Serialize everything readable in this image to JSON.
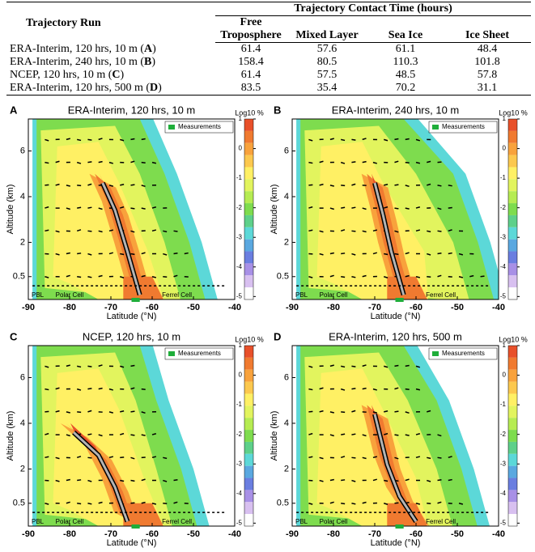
{
  "table": {
    "run_header": "Trajectory Run",
    "group_header": "Trajectory Contact Time (hours)",
    "columns": [
      "Free Troposphere",
      "Mixed Layer",
      "Sea Ice",
      "Ice Sheet"
    ],
    "rows": [
      {
        "prefix": "ERA-Interim, 120 hrs, 10 m (",
        "key": "A",
        "suffix": ")",
        "values": [
          61.4,
          57.6,
          61.1,
          48.4
        ]
      },
      {
        "prefix": "ERA-Interim, 240 hrs, 10 m (",
        "key": "B",
        "suffix": ")",
        "values": [
          158.4,
          80.5,
          110.3,
          101.8
        ]
      },
      {
        "prefix": "NCEP, 120 hrs, 10 m (",
        "key": "C",
        "suffix": ")",
        "values": [
          61.4,
          57.5,
          48.5,
          57.8
        ]
      },
      {
        "prefix": "ERA-Interim, 120 hrs, 500 m (",
        "key": "D",
        "suffix": ")",
        "values": [
          83.5,
          35.4,
          70.2,
          31.1
        ]
      }
    ]
  },
  "chart_data": [
    {
      "type": "contour",
      "letter": "A",
      "title": "ERA-Interim, 120 hrs, 10 m",
      "x_label": "Latitude (°N)",
      "y_label": "Altitude (km)",
      "xlim": [
        -90,
        -40
      ],
      "xticks": [
        -90,
        -80,
        -70,
        -60,
        -50,
        -40
      ],
      "ylim": [
        -0.5,
        7.4
      ],
      "yticks": [
        0.5,
        2,
        4,
        6
      ],
      "annotations": [
        "PBL",
        "Polar Cell",
        "Ferrel Cell"
      ],
      "legend": "Measurements",
      "legend_color": "#1fae3a",
      "colorbar_label": "Log10 %",
      "clim": [
        -5.1,
        1
      ],
      "cticks": [
        1,
        0,
        -1,
        -2,
        -3,
        -4,
        -5
      ]
    },
    {
      "type": "contour",
      "letter": "B",
      "title": "ERA-Interim, 240 hrs, 10 m",
      "x_label": "Latitude (°N)",
      "y_label": "Altitude (km)",
      "xlim": [
        -90,
        -40
      ],
      "xticks": [
        -90,
        -80,
        -70,
        -60,
        -50,
        -40
      ],
      "ylim": [
        -0.5,
        7.4
      ],
      "yticks": [
        0.5,
        2,
        4,
        6
      ],
      "annotations": [
        "PBL",
        "Polar Cell",
        "Ferrel Cell"
      ],
      "legend": "Measurements",
      "legend_color": "#1fae3a",
      "colorbar_label": "Log10 %",
      "clim": [
        -5.1,
        1
      ],
      "cticks": [
        1,
        0,
        -1,
        -2,
        -3,
        -4,
        -5
      ]
    },
    {
      "type": "contour",
      "letter": "C",
      "title": "NCEP, 120 hrs, 10 m",
      "x_label": "Latitude (°N)",
      "y_label": "Altitude (km)",
      "xlim": [
        -90,
        -40
      ],
      "xticks": [
        -90,
        -80,
        -70,
        -60,
        -50,
        -40
      ],
      "ylim": [
        -0.5,
        7.4
      ],
      "yticks": [
        0.5,
        2,
        4,
        6
      ],
      "annotations": [
        "PBL",
        "Polar Cell",
        "Ferrel Cell"
      ],
      "legend": "Measurements",
      "legend_color": "#1fae3a",
      "colorbar_label": "Log10 %",
      "clim": [
        -5.1,
        1
      ],
      "cticks": [
        1,
        0,
        -1,
        -2,
        -3,
        -4,
        -5
      ]
    },
    {
      "type": "contour",
      "letter": "D",
      "title": "ERA-Interim, 120 hrs, 500 m",
      "x_label": "Latitude (°N)",
      "y_label": "Altitude (km)",
      "xlim": [
        -90,
        -40
      ],
      "xticks": [
        -90,
        -80,
        -70,
        -60,
        -50,
        -40
      ],
      "ylim": [
        -0.5,
        7.4
      ],
      "yticks": [
        0.5,
        2,
        4,
        6
      ],
      "annotations": [
        "PBL",
        "Polar Cell",
        "Ferrel Cell"
      ],
      "legend": "Measurements",
      "legend_color": "#1fae3a",
      "colorbar_label": "Log10 %",
      "clim": [
        -5.1,
        1
      ],
      "cticks": [
        1,
        0,
        -1,
        -2,
        -3,
        -4,
        -5
      ]
    }
  ]
}
